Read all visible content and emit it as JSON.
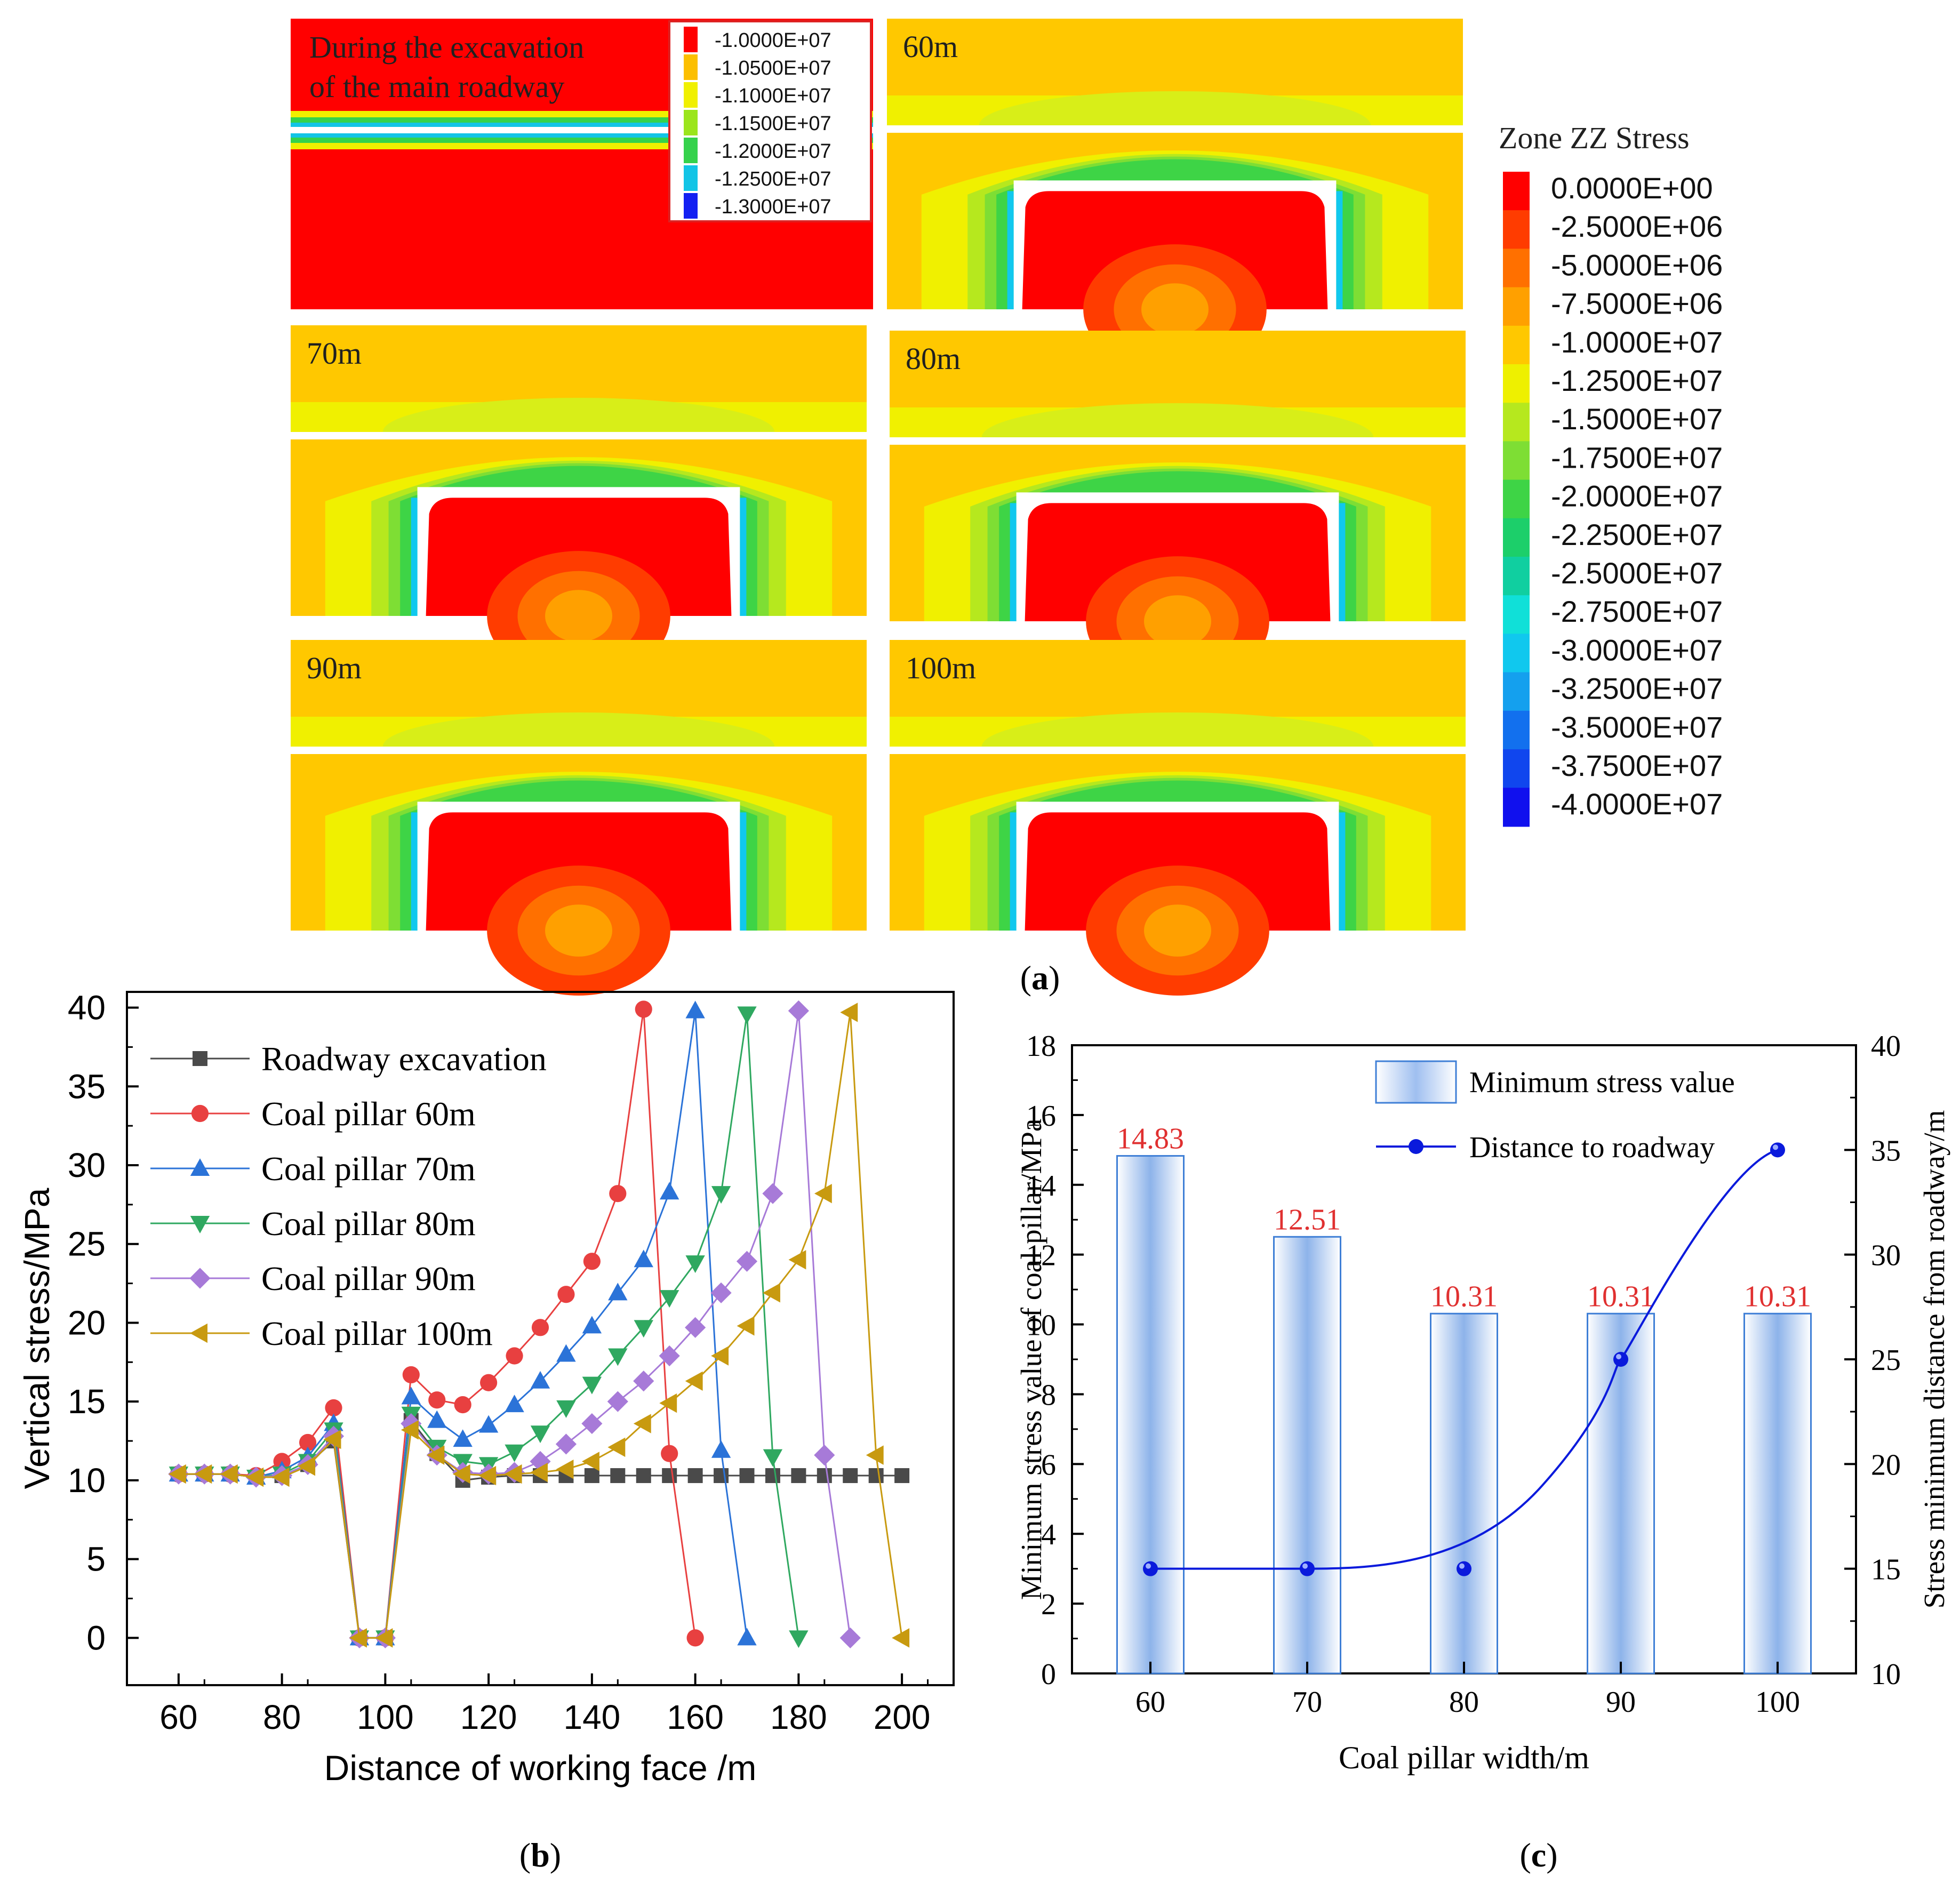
{
  "panel_a": {
    "label": "(a)",
    "label_letter": "a",
    "panels": [
      {
        "title_line1": "During the excavation",
        "title_line2": "of the main roadway"
      },
      {
        "title": "60m"
      },
      {
        "title": "70m"
      },
      {
        "title": "80m"
      },
      {
        "title": "90m"
      },
      {
        "title": "100m"
      }
    ],
    "small_legend": [
      {
        "label": "-1.0000E+07",
        "color": "#ff0000"
      },
      {
        "label": "-1.0500E+07",
        "color": "#fcbf00"
      },
      {
        "label": "-1.1000E+07",
        "color": "#f0f000"
      },
      {
        "label": "-1.1500E+07",
        "color": "#9be51c"
      },
      {
        "label": "-1.2000E+07",
        "color": "#35d24c"
      },
      {
        "label": "-1.2500E+07",
        "color": "#12c4e6"
      },
      {
        "label": "-1.3000E+07",
        "color": "#1320f2"
      }
    ],
    "legend_title": "Zone ZZ Stress",
    "legend": [
      {
        "label": "0.0000E+00",
        "color": "#ff0000"
      },
      {
        "label": "-2.5000E+06",
        "color": "#ff3c00"
      },
      {
        "label": "-5.0000E+06",
        "color": "#ff7000"
      },
      {
        "label": "-7.5000E+06",
        "color": "#ffa000"
      },
      {
        "label": "-1.0000E+07",
        "color": "#ffc800"
      },
      {
        "label": "-1.2500E+07",
        "color": "#eef000"
      },
      {
        "label": "-1.5000E+07",
        "color": "#b6e81e"
      },
      {
        "label": "-1.7500E+07",
        "color": "#7ede34"
      },
      {
        "label": "-2.0000E+07",
        "color": "#3ed446"
      },
      {
        "label": "-2.2500E+07",
        "color": "#1ccf6a"
      },
      {
        "label": "-2.5000E+07",
        "color": "#10cfa0"
      },
      {
        "label": "-2.7500E+07",
        "color": "#10e0d8"
      },
      {
        "label": "-3.0000E+07",
        "color": "#10c8ee"
      },
      {
        "label": "-3.2500E+07",
        "color": "#14a0ee"
      },
      {
        "label": "-3.5000E+07",
        "color": "#1270ee"
      },
      {
        "label": "-3.7500E+07",
        "color": "#1046ee"
      },
      {
        "label": "-4.0000E+07",
        "color": "#1010ee"
      }
    ]
  },
  "chart_data": [
    {
      "type": "line",
      "panel_label": "(b)",
      "label_letter": "b",
      "title": "",
      "xlabel": "Distance of working face /m",
      "ylabel": "Vertical stress/MPa",
      "xlim": [
        50,
        210
      ],
      "ylim": [
        -3,
        41
      ],
      "xticks": [
        60,
        80,
        100,
        120,
        140,
        160,
        180,
        200
      ],
      "yticks": [
        0,
        5,
        10,
        15,
        20,
        25,
        30,
        35,
        40
      ],
      "legend_position": "top-left",
      "series": [
        {
          "name": "Roadway excavation",
          "color": "#4a4a4a",
          "marker": "square",
          "x": [
            60,
            65,
            70,
            75,
            80,
            85,
            90,
            95,
            100,
            105,
            110,
            115,
            120,
            125,
            130,
            135,
            140,
            145,
            150,
            155,
            160,
            165,
            170,
            175,
            180,
            185,
            190,
            195,
            200
          ],
          "y": [
            10.4,
            10.4,
            10.4,
            10.2,
            10.3,
            11,
            12.5,
            0,
            0,
            13.8,
            11.7,
            10,
            10.2,
            10.3,
            10.3,
            10.3,
            10.3,
            10.3,
            10.3,
            10.3,
            10.3,
            10.3,
            10.3,
            10.3,
            10.3,
            10.3,
            10.3,
            10.3,
            10.3
          ]
        },
        {
          "name": "Coal pillar 60m",
          "color": "#e84040",
          "marker": "circle",
          "x": [
            60,
            65,
            70,
            75,
            80,
            85,
            90,
            95,
            100,
            105,
            110,
            115,
            120,
            125,
            130,
            135,
            140,
            145,
            150,
            155,
            160
          ],
          "y": [
            10.4,
            10.4,
            10.4,
            10.3,
            11.2,
            12.4,
            14.6,
            0,
            0,
            16.7,
            15.1,
            14.8,
            16.2,
            17.9,
            19.7,
            21.8,
            23.9,
            28.2,
            39.9,
            11.7,
            0
          ]
        },
        {
          "name": "Coal pillar 70m",
          "color": "#2b73d8",
          "marker": "triangle-up",
          "x": [
            60,
            65,
            70,
            75,
            80,
            85,
            90,
            95,
            100,
            105,
            110,
            115,
            120,
            125,
            130,
            135,
            140,
            145,
            150,
            155,
            160,
            165,
            170
          ],
          "y": [
            10.4,
            10.4,
            10.4,
            10.2,
            10.6,
            11.5,
            13.6,
            0,
            0,
            15.3,
            13.8,
            12.6,
            13.5,
            14.8,
            16.3,
            18,
            19.8,
            21.9,
            24,
            28.3,
            39.8,
            11.9,
            0
          ]
        },
        {
          "name": "Coal pillar 80m",
          "color": "#2fa860",
          "marker": "triangle-down",
          "x": [
            60,
            65,
            70,
            75,
            80,
            85,
            90,
            95,
            100,
            105,
            110,
            115,
            120,
            125,
            130,
            135,
            140,
            145,
            150,
            155,
            160,
            165,
            170,
            175,
            180
          ],
          "y": [
            10.4,
            10.4,
            10.4,
            10.2,
            10.4,
            11.2,
            13.2,
            0,
            0,
            14.2,
            12.1,
            11.2,
            11,
            11.8,
            13,
            14.6,
            16.1,
            17.9,
            19.7,
            21.6,
            23.8,
            28.2,
            39.6,
            11.5,
            0
          ]
        },
        {
          "name": "Coal pillar 90m",
          "color": "#a77ad8",
          "marker": "diamond",
          "x": [
            60,
            65,
            70,
            75,
            80,
            85,
            90,
            95,
            100,
            105,
            110,
            115,
            120,
            125,
            130,
            135,
            140,
            145,
            150,
            155,
            160,
            165,
            170,
            175,
            180,
            185,
            190
          ],
          "y": [
            10.4,
            10.4,
            10.4,
            10.2,
            10.3,
            11,
            12.8,
            0,
            0,
            13.6,
            11.6,
            10.5,
            10.4,
            10.5,
            11.2,
            12.3,
            13.6,
            15,
            16.3,
            17.9,
            19.7,
            21.9,
            23.9,
            28.2,
            39.8,
            11.6,
            0
          ]
        },
        {
          "name": "Coal pillar 100m",
          "color": "#c89a10",
          "marker": "triangle-left",
          "x": [
            60,
            65,
            70,
            75,
            80,
            85,
            90,
            95,
            100,
            105,
            110,
            115,
            120,
            125,
            130,
            135,
            140,
            145,
            150,
            155,
            160,
            165,
            170,
            175,
            180,
            185,
            190,
            195,
            200
          ],
          "y": [
            10.4,
            10.4,
            10.4,
            10.2,
            10.2,
            10.9,
            12.6,
            0,
            0,
            13.2,
            11.6,
            10.4,
            10.3,
            10.4,
            10.5,
            10.7,
            11.2,
            12.1,
            13.6,
            14.9,
            16.3,
            17.9,
            19.8,
            21.9,
            24,
            28.2,
            39.7,
            11.6,
            0
          ]
        }
      ]
    },
    {
      "type": "bar",
      "panel_label": "(c)",
      "label_letter": "c",
      "title": "",
      "xlabel": "Coal pillar width/m",
      "ylabel": "Minimum stress value of coal pillar/MPa",
      "y2label": "Stress minimum distance from roadway/m",
      "categories": [
        "60",
        "70",
        "80",
        "90",
        "100"
      ],
      "ylim": [
        0,
        18
      ],
      "y2lim": [
        10,
        40
      ],
      "yticks": [
        0,
        2,
        4,
        6,
        8,
        10,
        12,
        14,
        16,
        18
      ],
      "y2ticks": [
        10,
        15,
        20,
        25,
        30,
        35,
        40
      ],
      "legend_position": "top-right",
      "series": [
        {
          "name": "Minimum stress value",
          "axis": "left",
          "type": "bar",
          "color": "#3f7fd6",
          "values": [
            14.83,
            12.51,
            10.31,
            10.31,
            10.31
          ],
          "data_labels": [
            "14.83",
            "12.51",
            "10.31",
            "10.31",
            "10.31"
          ],
          "label_color": "#e03030"
        },
        {
          "name": "Distance to roadway",
          "axis": "right",
          "type": "line",
          "color": "#0a1adc",
          "values": [
            15,
            15,
            15,
            25,
            35
          ]
        }
      ]
    }
  ]
}
